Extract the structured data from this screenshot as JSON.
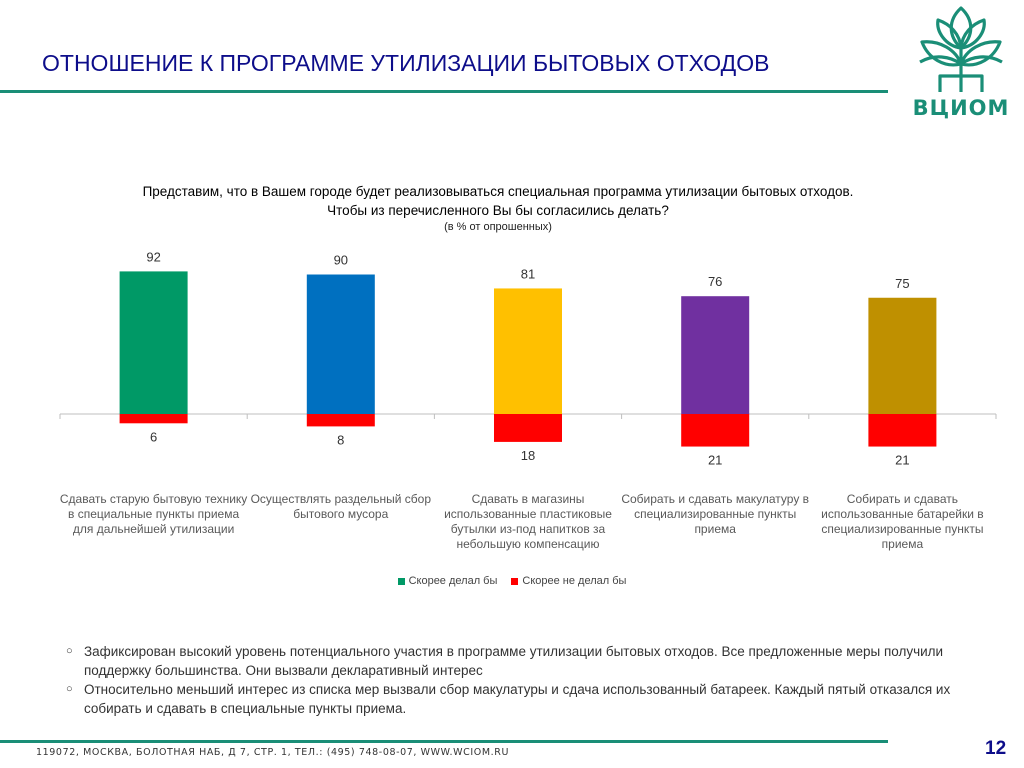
{
  "slide": {
    "title": "ОТНОШЕНИЕ К ПРОГРАММЕ  УТИЛИЗАЦИИ БЫТОВЫХ ОТХОДОВ",
    "logo_text": "ВЦИОМ",
    "page_number": "12",
    "footer_address": "119072, МОСКВА, БОЛОТНАЯ НАБ, Д 7, СТР. 1, ТЕЛ.: (495) 748-08-07, WWW.WCIOM.RU",
    "brand_color": "#1a8e77",
    "title_color": "#0d0d8a"
  },
  "chart_data": {
    "type": "bar",
    "title_line1": "Представим, что  в Вашем городе будет реализовываться специальная программа  утилизации бытовых отходов.",
    "title_line2": "Чтобы из перечисленного Вы бы  согласились делать?",
    "subtitle": "(в % от опрошенных)",
    "categories": [
      "Сдавать старую бытовую технику в специальные пункты приема для дальнейшей утилизации",
      "Осуществлять раздельный сбор бытового мусора",
      "Сдавать  в магазины использованные пластиковые бутылки из-под напитков за небольшую компенсацию",
      "Собирать и сдавать макулатуру в специализированные пункты приема",
      "Собирать и сдавать использованные батарейки  в специализированные пункты приема"
    ],
    "series": [
      {
        "name": "Скорее делал бы",
        "values": [
          92,
          90,
          81,
          76,
          75
        ],
        "colors": [
          "#009966",
          "#0070c0",
          "#ffc000",
          "#7030a0",
          "#bf9000"
        ],
        "legend_color": "#009966"
      },
      {
        "name": "Скорее не делал бы",
        "values": [
          6,
          8,
          18,
          21,
          21
        ],
        "color": "#ff0000"
      }
    ],
    "ylim": [
      -21,
      92
    ],
    "legend_position": "bottom",
    "grid": false
  },
  "bullets": [
    "Зафиксирован высокий уровень потенциального участия в программе утилизации бытовых отходов. Все предложенные меры получили поддержку большинства. Они вызвали декларативный  интерес",
    "Относительно меньший  интерес  из списка мер вызвали сбор  макулатуры и  сдача использованный батареек. Каждый пятый отказался их собирать и сдавать в специальные пункты приема."
  ],
  "bullet_glyph": "○"
}
